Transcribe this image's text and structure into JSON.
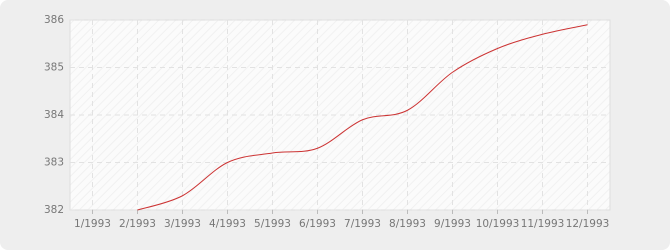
{
  "chart_data": {
    "type": "line",
    "categories": [
      "1/1993",
      "2/1993",
      "3/1993",
      "4/1993",
      "5/1993",
      "6/1993",
      "7/1993",
      "8/1993",
      "9/1993",
      "10/1993",
      "11/1993",
      "12/1993"
    ],
    "values": [
      null,
      382.0,
      382.3,
      383.0,
      383.2,
      383.3,
      383.9,
      384.1,
      384.9,
      385.4,
      385.7,
      385.9
    ],
    "color": "#cc3333",
    "ylim": [
      382,
      386
    ],
    "yticks": [
      382,
      383,
      384,
      385,
      386
    ],
    "grid": true
  }
}
